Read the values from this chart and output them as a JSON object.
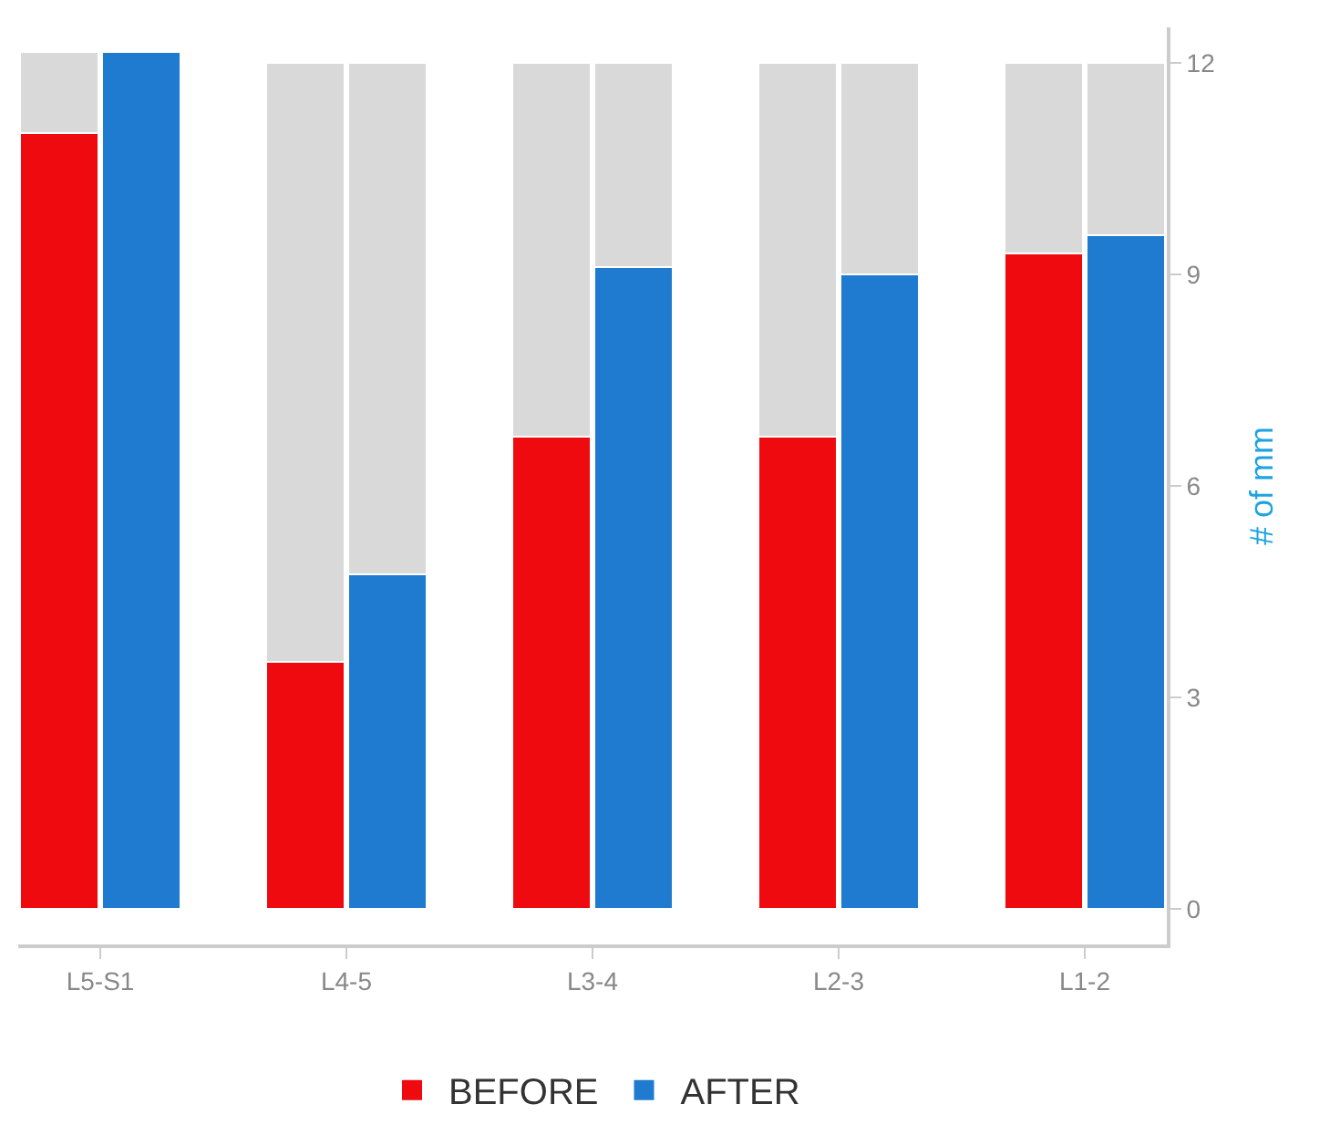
{
  "chart_data": {
    "type": "bar",
    "categories": [
      "L5-S1",
      null,
      null,
      "L4-5",
      null,
      null,
      "L3-4",
      null,
      null,
      "L2-3",
      null,
      null,
      "L1-2",
      null
    ],
    "series": [
      {
        "name": "BEFORE",
        "color": "#ee0a0f",
        "values": [
          11.0,
          null,
          null,
          3.5,
          null,
          null,
          6.7,
          null,
          null,
          6.7,
          null,
          null,
          9.3,
          null
        ]
      },
      {
        "name": "AFTER",
        "color": "#1f7bd0",
        "values": [
          null,
          12.15,
          null,
          null,
          4.75,
          null,
          null,
          9.1,
          null,
          null,
          9.0,
          null,
          null,
          9.55
        ]
      },
      {
        "color": "#d9d9d9",
        "values": [
          1.15,
          null,
          null,
          8.5,
          7.25,
          null,
          5.3,
          2.9,
          null,
          5.3,
          3.0,
          null,
          2.7,
          2.45
        ]
      }
    ],
    "stacked": true,
    "ylabel": "# of mm",
    "ylim": [
      -0.5,
      12.5
    ],
    "yticks": [
      0,
      3,
      6,
      9,
      12
    ],
    "grid": false,
    "legend": "bottom"
  }
}
